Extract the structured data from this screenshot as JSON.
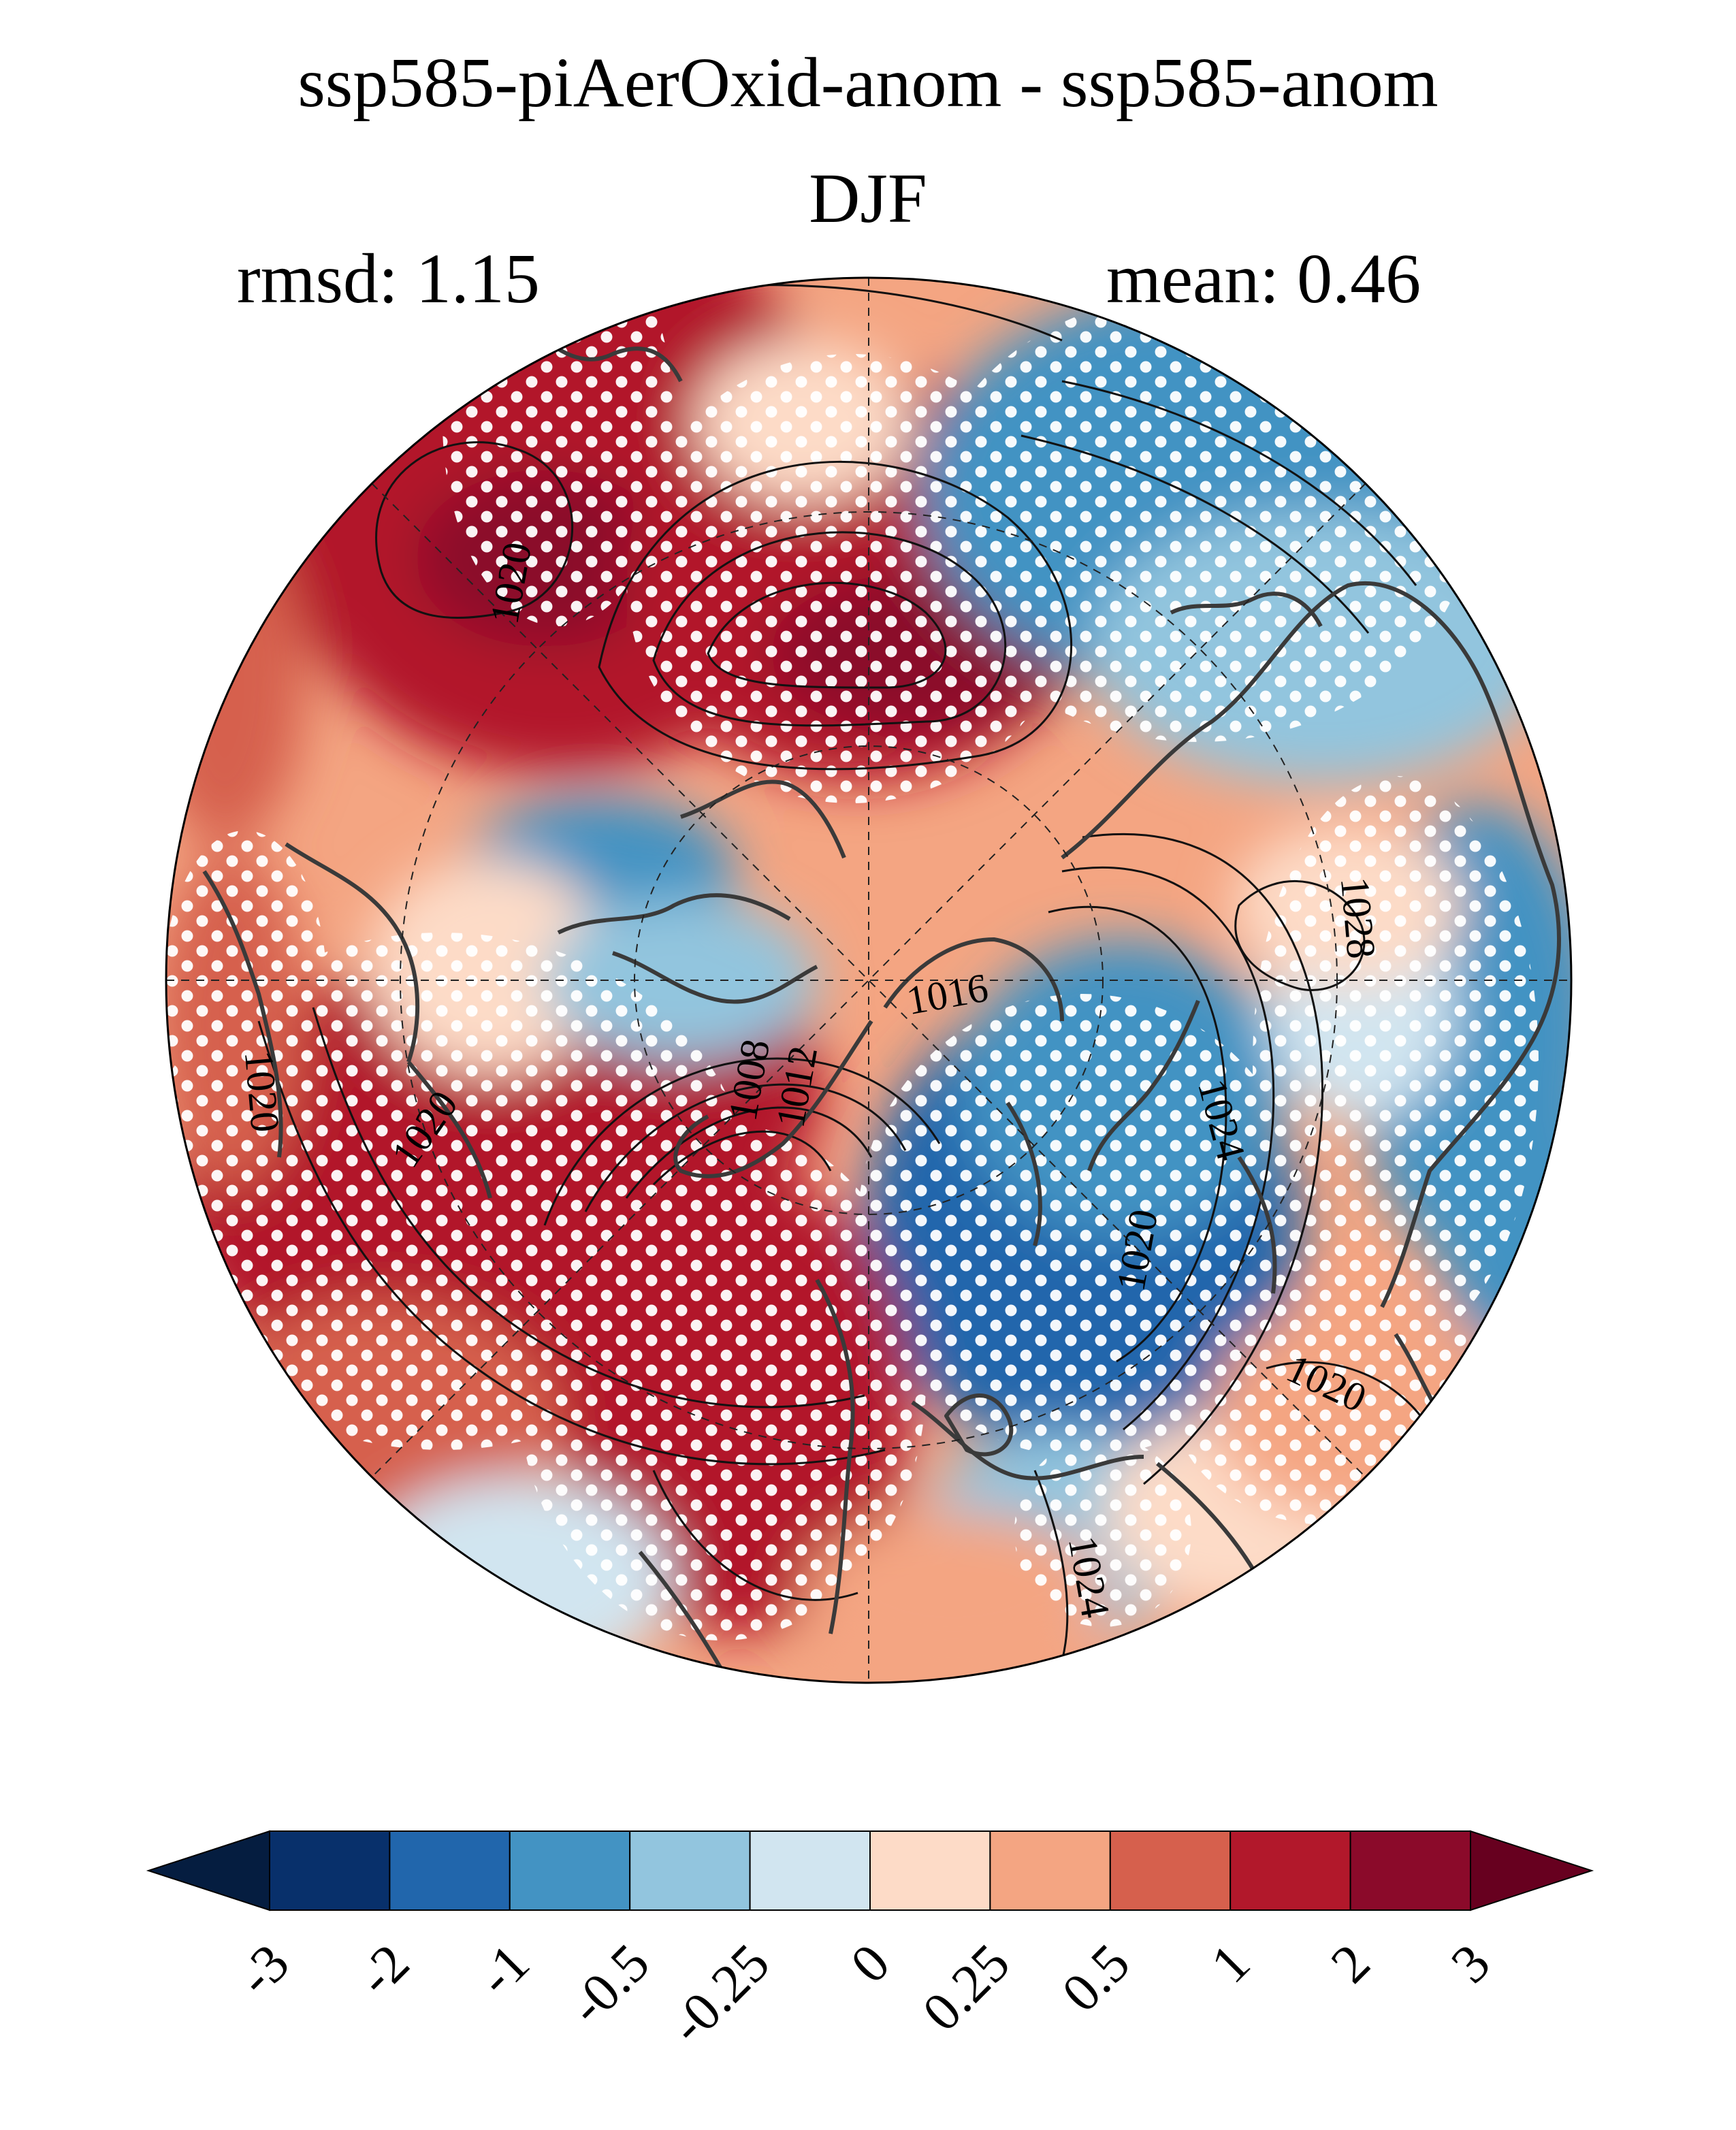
{
  "title": {
    "line1": "ssp585-piAerOxid-anom - ssp585-anom",
    "line2": "DJF"
  },
  "stats": {
    "rmsd": "rmsd: 1.15",
    "mean": "mean: 0.46"
  },
  "map": {
    "projection": "north-polar-stereographic",
    "contour_labels": [
      "1020",
      "1028",
      "1016",
      "1024",
      "1020",
      "1008",
      "1012",
      "1020",
      "1024",
      "1020",
      "1020"
    ]
  },
  "colorbar": {
    "tick_labels": [
      "-3",
      "-2",
      "-1",
      "-0.5",
      "-0.25",
      "0",
      "0.25",
      "0.5",
      "1",
      "2",
      "3"
    ],
    "colors": [
      "#08306b",
      "#2166ac",
      "#4393c3",
      "#92c5de",
      "#d1e5f0",
      "#fddbc7",
      "#f4a582",
      "#d6604d",
      "#b2182b",
      "#8b0a2a"
    ],
    "under_color": "#051d40",
    "over_color": "#67001f"
  }
}
